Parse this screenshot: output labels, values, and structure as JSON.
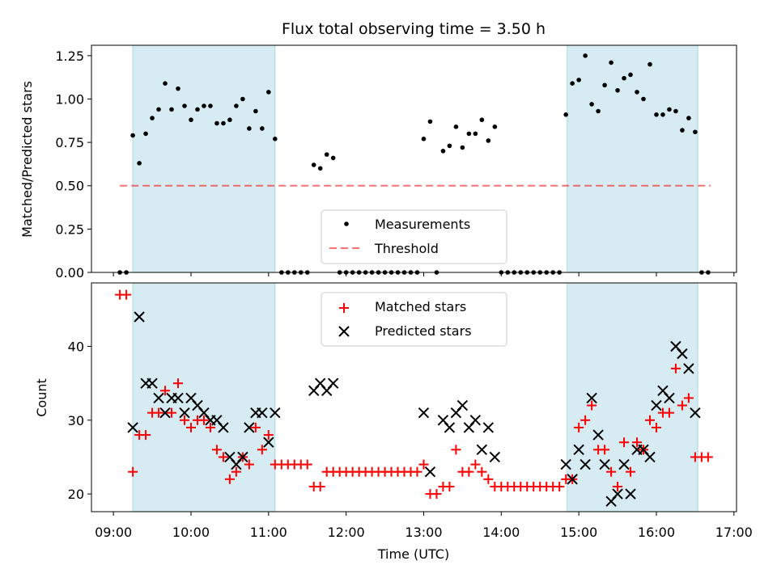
{
  "figure": {
    "title": "Flux total observing time = 3.50 h",
    "xlabel": "Time (UTC)",
    "x_tick_labels": [
      "09:00",
      "10:00",
      "11:00",
      "12:00",
      "13:00",
      "14:00",
      "15:00",
      "16:00",
      "17:00"
    ]
  },
  "colors": {
    "span_fill": "#add8e6",
    "threshold": "#ff0000",
    "measurement": "#000000",
    "matched": "#ff0000",
    "predicted": "#000000"
  },
  "chart_data": [
    {
      "type": "scatter",
      "ylabel": "Matched/Predicted stars",
      "xlim": [
        "08:43",
        "17:02"
      ],
      "ylim": [
        0,
        1.31
      ],
      "y_ticks": [
        "0.00",
        "0.25",
        "0.50",
        "0.75",
        "1.00",
        "1.25"
      ],
      "shaded_spans": [
        [
          "09:15",
          "11:05"
        ],
        [
          "14:51",
          "16:32"
        ]
      ],
      "threshold": {
        "value": 0.5,
        "x_range": [
          "09:05",
          "16:42"
        ]
      },
      "legend": {
        "position": "lower-center",
        "entries": [
          "Measurements",
          "Threshold"
        ]
      },
      "series": [
        {
          "name": "Measurements",
          "points": [
            [
              "09:05",
              0
            ],
            [
              "09:10",
              0
            ],
            [
              "09:15",
              0.79
            ],
            [
              "09:20",
              0.63
            ],
            [
              "09:25",
              0.8
            ],
            [
              "09:30",
              0.89
            ],
            [
              "09:35",
              0.94
            ],
            [
              "09:40",
              1.09
            ],
            [
              "09:45",
              0.94
            ],
            [
              "09:50",
              1.06
            ],
            [
              "09:55",
              0.96
            ],
            [
              "10:00",
              0.88
            ],
            [
              "10:05",
              0.94
            ],
            [
              "10:10",
              0.96
            ],
            [
              "10:15",
              0.96
            ],
            [
              "10:20",
              0.86
            ],
            [
              "10:25",
              0.86
            ],
            [
              "10:30",
              0.88
            ],
            [
              "10:35",
              0.96
            ],
            [
              "10:40",
              1.0
            ],
            [
              "10:45",
              0.83
            ],
            [
              "10:50",
              0.93
            ],
            [
              "10:55",
              0.83
            ],
            [
              "11:00",
              1.04
            ],
            [
              "11:05",
              0.77
            ],
            [
              "11:10",
              0
            ],
            [
              "11:15",
              0
            ],
            [
              "11:20",
              0
            ],
            [
              "11:25",
              0
            ],
            [
              "11:30",
              0
            ],
            [
              "11:35",
              0.62
            ],
            [
              "11:40",
              0.6
            ],
            [
              "11:45",
              0.68
            ],
            [
              "11:50",
              0.66
            ],
            [
              "11:55",
              0
            ],
            [
              "12:00",
              0
            ],
            [
              "12:05",
              0
            ],
            [
              "12:10",
              0
            ],
            [
              "12:15",
              0
            ],
            [
              "12:20",
              0
            ],
            [
              "12:25",
              0
            ],
            [
              "12:30",
              0
            ],
            [
              "12:35",
              0
            ],
            [
              "12:40",
              0
            ],
            [
              "12:45",
              0
            ],
            [
              "12:50",
              0
            ],
            [
              "12:55",
              0
            ],
            [
              "13:00",
              0.77
            ],
            [
              "13:05",
              0.87
            ],
            [
              "13:10",
              0
            ],
            [
              "13:15",
              0.7
            ],
            [
              "13:20",
              0.73
            ],
            [
              "13:25",
              0.84
            ],
            [
              "13:30",
              0.72
            ],
            [
              "13:35",
              0.8
            ],
            [
              "13:40",
              0.8
            ],
            [
              "13:45",
              0.88
            ],
            [
              "13:50",
              0.76
            ],
            [
              "13:55",
              0.84
            ],
            [
              "14:00",
              0
            ],
            [
              "14:05",
              0
            ],
            [
              "14:10",
              0
            ],
            [
              "14:15",
              0
            ],
            [
              "14:20",
              0
            ],
            [
              "14:25",
              0
            ],
            [
              "14:30",
              0
            ],
            [
              "14:35",
              0
            ],
            [
              "14:40",
              0
            ],
            [
              "14:45",
              0
            ],
            [
              "14:50",
              0.91
            ],
            [
              "14:55",
              1.09
            ],
            [
              "15:00",
              1.11
            ],
            [
              "15:05",
              1.25
            ],
            [
              "15:10",
              0.97
            ],
            [
              "15:15",
              0.93
            ],
            [
              "15:20",
              1.08
            ],
            [
              "15:25",
              1.21
            ],
            [
              "15:30",
              1.05
            ],
            [
              "15:35",
              1.12
            ],
            [
              "15:40",
              1.14
            ],
            [
              "15:45",
              1.04
            ],
            [
              "15:50",
              1.0
            ],
            [
              "15:55",
              1.2
            ],
            [
              "16:00",
              0.91
            ],
            [
              "16:05",
              0.91
            ],
            [
              "16:10",
              0.94
            ],
            [
              "16:15",
              0.93
            ],
            [
              "16:20",
              0.82
            ],
            [
              "16:25",
              0.89
            ],
            [
              "16:30",
              0.81
            ],
            [
              "16:35",
              0
            ],
            [
              "16:40",
              0
            ]
          ]
        }
      ]
    },
    {
      "type": "scatter",
      "ylabel": "Count",
      "xlim": [
        "08:43",
        "17:02"
      ],
      "ylim": [
        17.6,
        48.6
      ],
      "y_ticks": [
        "20",
        "30",
        "40"
      ],
      "shaded_spans": [
        [
          "09:15",
          "11:05"
        ],
        [
          "14:51",
          "16:32"
        ]
      ],
      "legend": {
        "position": "top-center",
        "entries": [
          "Matched stars",
          "Predicted stars"
        ]
      },
      "series": [
        {
          "name": "Matched stars",
          "marker": "plus",
          "points": [
            [
              "09:05",
              47
            ],
            [
              "09:10",
              47
            ],
            [
              "09:15",
              23
            ],
            [
              "09:20",
              28
            ],
            [
              "09:25",
              28
            ],
            [
              "09:30",
              31
            ],
            [
              "09:35",
              31
            ],
            [
              "09:40",
              34
            ],
            [
              "09:45",
              31
            ],
            [
              "09:50",
              35
            ],
            [
              "09:55",
              30
            ],
            [
              "10:00",
              29
            ],
            [
              "10:05",
              30
            ],
            [
              "10:10",
              30
            ],
            [
              "10:15",
              29
            ],
            [
              "10:20",
              26
            ],
            [
              "10:25",
              25
            ],
            [
              "10:30",
              22
            ],
            [
              "10:35",
              23
            ],
            [
              "10:40",
              25
            ],
            [
              "10:45",
              24
            ],
            [
              "10:50",
              29
            ],
            [
              "10:55",
              26
            ],
            [
              "11:00",
              28
            ],
            [
              "11:05",
              24
            ],
            [
              "11:10",
              24
            ],
            [
              "11:15",
              24
            ],
            [
              "11:20",
              24
            ],
            [
              "11:25",
              24
            ],
            [
              "11:30",
              24
            ],
            [
              "11:35",
              21
            ],
            [
              "11:40",
              21
            ],
            [
              "11:45",
              23
            ],
            [
              "11:50",
              23
            ],
            [
              "11:55",
              23
            ],
            [
              "12:00",
              23
            ],
            [
              "12:05",
              23
            ],
            [
              "12:10",
              23
            ],
            [
              "12:15",
              23
            ],
            [
              "12:20",
              23
            ],
            [
              "12:25",
              23
            ],
            [
              "12:30",
              23
            ],
            [
              "12:35",
              23
            ],
            [
              "12:40",
              23
            ],
            [
              "12:45",
              23
            ],
            [
              "12:50",
              23
            ],
            [
              "12:55",
              23
            ],
            [
              "13:00",
              24
            ],
            [
              "13:05",
              20
            ],
            [
              "13:10",
              20
            ],
            [
              "13:15",
              21
            ],
            [
              "13:20",
              21
            ],
            [
              "13:25",
              26
            ],
            [
              "13:30",
              23
            ],
            [
              "13:35",
              23
            ],
            [
              "13:40",
              24
            ],
            [
              "13:45",
              23
            ],
            [
              "13:50",
              22
            ],
            [
              "13:55",
              21
            ],
            [
              "14:00",
              21
            ],
            [
              "14:05",
              21
            ],
            [
              "14:10",
              21
            ],
            [
              "14:15",
              21
            ],
            [
              "14:20",
              21
            ],
            [
              "14:25",
              21
            ],
            [
              "14:30",
              21
            ],
            [
              "14:35",
              21
            ],
            [
              "14:40",
              21
            ],
            [
              "14:45",
              21
            ],
            [
              "14:50",
              22
            ],
            [
              "14:55",
              22
            ],
            [
              "15:00",
              29
            ],
            [
              "15:05",
              30
            ],
            [
              "15:10",
              32
            ],
            [
              "15:15",
              26
            ],
            [
              "15:20",
              26
            ],
            [
              "15:25",
              23
            ],
            [
              "15:30",
              21
            ],
            [
              "15:35",
              27
            ],
            [
              "15:40",
              23
            ],
            [
              "15:45",
              27
            ],
            [
              "15:50",
              26
            ],
            [
              "15:55",
              30
            ],
            [
              "16:00",
              29
            ],
            [
              "16:05",
              31
            ],
            [
              "16:10",
              31
            ],
            [
              "16:15",
              37
            ],
            [
              "16:20",
              32
            ],
            [
              "16:25",
              33
            ],
            [
              "16:30",
              25
            ],
            [
              "16:35",
              25
            ],
            [
              "16:40",
              25
            ]
          ]
        },
        {
          "name": "Predicted stars",
          "marker": "cross",
          "points": [
            [
              "09:15",
              29
            ],
            [
              "09:20",
              44
            ],
            [
              "09:25",
              35
            ],
            [
              "09:30",
              35
            ],
            [
              "09:35",
              33
            ],
            [
              "09:40",
              31
            ],
            [
              "09:45",
              33
            ],
            [
              "09:50",
              33
            ],
            [
              "09:55",
              31
            ],
            [
              "10:00",
              33
            ],
            [
              "10:05",
              32
            ],
            [
              "10:10",
              31
            ],
            [
              "10:15",
              30
            ],
            [
              "10:20",
              30
            ],
            [
              "10:25",
              29
            ],
            [
              "10:30",
              25
            ],
            [
              "10:35",
              24
            ],
            [
              "10:40",
              25
            ],
            [
              "10:45",
              29
            ],
            [
              "10:50",
              31
            ],
            [
              "10:55",
              31
            ],
            [
              "11:00",
              27
            ],
            [
              "11:05",
              31
            ],
            [
              "11:35",
              34
            ],
            [
              "11:40",
              35
            ],
            [
              "11:45",
              34
            ],
            [
              "11:50",
              35
            ],
            [
              "13:00",
              31
            ],
            [
              "13:05",
              23
            ],
            [
              "13:15",
              30
            ],
            [
              "13:20",
              29
            ],
            [
              "13:25",
              31
            ],
            [
              "13:30",
              32
            ],
            [
              "13:35",
              29
            ],
            [
              "13:40",
              30
            ],
            [
              "13:45",
              26
            ],
            [
              "13:50",
              29
            ],
            [
              "13:55",
              25
            ],
            [
              "14:50",
              24
            ],
            [
              "14:55",
              22
            ],
            [
              "15:00",
              26
            ],
            [
              "15:05",
              24
            ],
            [
              "15:10",
              33
            ],
            [
              "15:15",
              28
            ],
            [
              "15:20",
              24
            ],
            [
              "15:25",
              19
            ],
            [
              "15:30",
              20
            ],
            [
              "15:35",
              24
            ],
            [
              "15:40",
              20
            ],
            [
              "15:45",
              26
            ],
            [
              "15:50",
              26
            ],
            [
              "15:55",
              25
            ],
            [
              "16:00",
              32
            ],
            [
              "16:05",
              34
            ],
            [
              "16:10",
              33
            ],
            [
              "16:15",
              40
            ],
            [
              "16:20",
              39
            ],
            [
              "16:25",
              37
            ],
            [
              "16:30",
              31
            ]
          ]
        }
      ]
    }
  ]
}
